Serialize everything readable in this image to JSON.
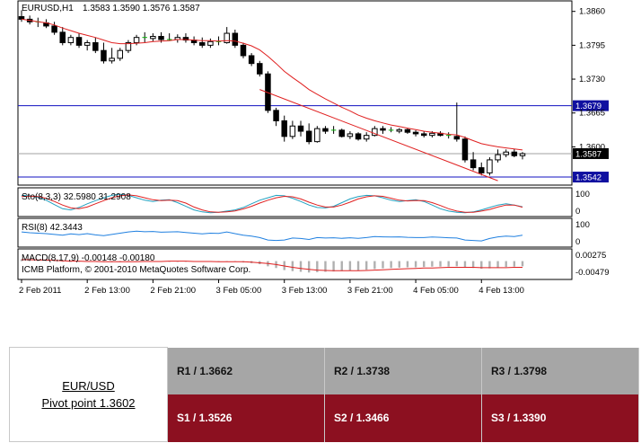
{
  "chart_data": {
    "type": "candlestick",
    "symbol_label": "EURUSD,H1",
    "ohlc_label": "1.3583 1.3590 1.3576 1.3587",
    "price_ticks": [
      "1.3860",
      "1.3795",
      "1.3730",
      "1.3665",
      "1.3600"
    ],
    "price_range": [
      1.353,
      1.3875
    ],
    "horizontal_lines": [
      {
        "label": "1.3679",
        "value": 1.3679
      },
      {
        "label": "1.3542",
        "value": 1.3542
      }
    ],
    "current_price": {
      "label": "1.3587",
      "value": 1.3587
    },
    "x_tick_labels": [
      "2 Feb 2011",
      "2 Feb 13:00",
      "2 Feb 21:00",
      "3 Feb 05:00",
      "3 Feb 13:00",
      "3 Feb 21:00",
      "4 Feb 05:00",
      "4 Feb 13:00"
    ],
    "candles": [
      [
        1.385,
        1.3862,
        1.384,
        1.3845
      ],
      [
        1.3845,
        1.3852,
        1.3835,
        1.384
      ],
      [
        1.384,
        1.3848,
        1.383,
        1.3838
      ],
      [
        1.3838,
        1.3845,
        1.3828,
        1.3832
      ],
      [
        1.3832,
        1.384,
        1.3815,
        1.382
      ],
      [
        1.382,
        1.383,
        1.3795,
        1.38
      ],
      [
        1.38,
        1.3815,
        1.3795,
        1.381
      ],
      [
        1.381,
        1.3818,
        1.379,
        1.3795
      ],
      [
        1.3795,
        1.3805,
        1.3785,
        1.38
      ],
      [
        1.38,
        1.381,
        1.378,
        1.3785
      ],
      [
        1.3785,
        1.38,
        1.376,
        1.3765
      ],
      [
        1.3765,
        1.379,
        1.376,
        1.377
      ],
      [
        1.377,
        1.379,
        1.3765,
        1.3785
      ],
      [
        1.3785,
        1.3805,
        1.378,
        1.38
      ],
      [
        1.38,
        1.3815,
        1.3795,
        1.381
      ],
      [
        1.381,
        1.382,
        1.38,
        1.3808
      ],
      [
        1.3808,
        1.3818,
        1.3802,
        1.3812
      ],
      [
        1.3812,
        1.382,
        1.38,
        1.3806
      ],
      [
        1.3806,
        1.3818,
        1.3804,
        1.3806
      ],
      [
        1.3806,
        1.3816,
        1.38,
        1.381
      ],
      [
        1.381,
        1.3818,
        1.38,
        1.3805
      ],
      [
        1.3805,
        1.3812,
        1.3795,
        1.38
      ],
      [
        1.38,
        1.381,
        1.379,
        1.3795
      ],
      [
        1.3795,
        1.3808,
        1.379,
        1.3802
      ],
      [
        1.3802,
        1.3812,
        1.3795,
        1.38
      ],
      [
        1.38,
        1.383,
        1.3798,
        1.3818
      ],
      [
        1.3818,
        1.3825,
        1.379,
        1.3795
      ],
      [
        1.3795,
        1.38,
        1.377,
        1.3775
      ],
      [
        1.3775,
        1.378,
        1.3755,
        1.376
      ],
      [
        1.376,
        1.3765,
        1.3735,
        1.374
      ],
      [
        1.374,
        1.3745,
        1.3665,
        1.367
      ],
      [
        1.367,
        1.3675,
        1.364,
        1.365
      ],
      [
        1.365,
        1.366,
        1.361,
        1.362
      ],
      [
        1.362,
        1.365,
        1.3615,
        1.364
      ],
      [
        1.364,
        1.365,
        1.362,
        1.363
      ],
      [
        1.363,
        1.3645,
        1.3605,
        1.361
      ],
      [
        1.361,
        1.364,
        1.3608,
        1.3635
      ],
      [
        1.3635,
        1.364,
        1.3625,
        1.363
      ],
      [
        1.363,
        1.364,
        1.3625,
        1.3632
      ],
      [
        1.3632,
        1.3635,
        1.3618,
        1.362
      ],
      [
        1.362,
        1.363,
        1.3615,
        1.3625
      ],
      [
        1.3625,
        1.3628,
        1.3612,
        1.3615
      ],
      [
        1.3615,
        1.3628,
        1.361,
        1.3622
      ],
      [
        1.3622,
        1.364,
        1.362,
        1.3635
      ],
      [
        1.3635,
        1.364,
        1.3625,
        1.3632
      ],
      [
        1.3632,
        1.3638,
        1.3628,
        1.363
      ],
      [
        1.363,
        1.3636,
        1.3626,
        1.3633
      ],
      [
        1.3633,
        1.3636,
        1.3625,
        1.3628
      ],
      [
        1.3628,
        1.3632,
        1.362,
        1.3625
      ],
      [
        1.3625,
        1.363,
        1.3618,
        1.3622
      ],
      [
        1.3622,
        1.363,
        1.3618,
        1.3626
      ],
      [
        1.3626,
        1.363,
        1.362,
        1.3622
      ],
      [
        1.3622,
        1.3628,
        1.3616,
        1.362
      ],
      [
        1.362,
        1.3685,
        1.361,
        1.3615
      ],
      [
        1.3615,
        1.362,
        1.357,
        1.3575
      ],
      [
        1.3575,
        1.359,
        1.3555,
        1.356
      ],
      [
        1.356,
        1.357,
        1.3545,
        1.355
      ],
      [
        1.355,
        1.358,
        1.3545,
        1.3575
      ],
      [
        1.3575,
        1.3595,
        1.357,
        1.3585
      ],
      [
        1.3585,
        1.3595,
        1.358,
        1.359
      ],
      [
        1.359,
        1.3596,
        1.358,
        1.3583
      ],
      [
        1.3583,
        1.359,
        1.3576,
        1.3587
      ]
    ],
    "moving_average": [
      1.3845,
      1.3843,
      1.384,
      1.3838,
      1.3834,
      1.3828,
      1.3823,
      1.3818,
      1.3814,
      1.381,
      1.3805,
      1.38,
      1.3798,
      1.3798,
      1.3799,
      1.38,
      1.3802,
      1.3803,
      1.3804,
      1.3806,
      1.3806,
      1.3805,
      1.3804,
      1.3804,
      1.3803,
      1.3804,
      1.3803,
      1.3799,
      1.3794,
      1.3786,
      1.3774,
      1.376,
      1.3745,
      1.3733,
      1.3722,
      1.371,
      1.3701,
      1.3692,
      1.3684,
      1.3676,
      1.3669,
      1.3661,
      1.3655,
      1.365,
      1.3646,
      1.3642,
      1.3639,
      1.3636,
      1.3633,
      1.363,
      1.3628,
      1.3626,
      1.3624,
      1.3623,
      1.3618,
      1.3612,
      1.3606,
      1.3603,
      1.36,
      1.3598,
      1.3596,
      1.3594
    ],
    "trend_line": {
      "from": [
        1.371,
        1.3605
      ],
      "to": [
        1.361,
        1.3535
      ]
    },
    "stochastic": {
      "label": "Sto(8,3,3) 32.5980 31.2908",
      "ticks": [
        "100",
        "0"
      ],
      "range": [
        0,
        100
      ],
      "main": [
        80,
        78,
        72,
        60,
        42,
        25,
        20,
        30,
        45,
        58,
        70,
        80,
        85,
        80,
        70,
        60,
        55,
        60,
        62,
        50,
        35,
        20,
        12,
        8,
        10,
        15,
        20,
        30,
        45,
        60,
        70,
        80,
        78,
        68,
        55,
        40,
        30,
        28,
        35,
        50,
        65,
        75,
        80,
        78,
        70,
        60,
        55,
        58,
        62,
        55,
        40,
        25,
        15,
        10,
        8,
        12,
        20,
        30,
        40,
        45,
        40,
        33
      ],
      "signal": [
        75,
        77,
        75,
        68,
        55,
        40,
        28,
        25,
        32,
        45,
        58,
        70,
        78,
        82,
        78,
        70,
        62,
        58,
        60,
        58,
        48,
        32,
        20,
        12,
        10,
        12,
        16,
        24,
        35,
        48,
        60,
        70,
        76,
        74,
        65,
        52,
        40,
        32,
        32,
        40,
        52,
        65,
        74,
        78,
        76,
        68,
        60,
        57,
        59,
        58,
        50,
        38,
        25,
        15,
        10,
        10,
        15,
        22,
        32,
        40,
        40,
        31
      ]
    },
    "rsi": {
      "label": "RSI(8) 42.3443",
      "ticks": [
        "100",
        "0"
      ],
      "range": [
        0,
        100
      ],
      "values": [
        55,
        52,
        50,
        48,
        45,
        42,
        47,
        44,
        48,
        43,
        40,
        45,
        50,
        55,
        58,
        56,
        57,
        54,
        55,
        56,
        53,
        50,
        47,
        50,
        49,
        55,
        48,
        42,
        38,
        32,
        22,
        20,
        22,
        30,
        28,
        24,
        32,
        30,
        31,
        29,
        31,
        29,
        32,
        36,
        35,
        34,
        35,
        33,
        32,
        32,
        34,
        33,
        31,
        30,
        22,
        20,
        18,
        28,
        35,
        38,
        36,
        42
      ]
    },
    "macd": {
      "label": "MACD(8,17,9) -0.00148 -0.00180",
      "ticks": [
        "0.00275",
        "-0.00479"
      ],
      "range": [
        -0.00479,
        0.00275
      ],
      "histogram": [
        0.0005,
        0.0004,
        0.0003,
        0.0002,
        0.0001,
        0.0,
        -0.0001,
        -0.0001,
        -0.0002,
        -0.0002,
        -0.0003,
        -0.0003,
        -0.0003,
        -0.0002,
        -0.0001,
        -0.0001,
        0.0,
        0.0,
        0.0,
        0.0,
        -0.0001,
        -0.0001,
        -0.0002,
        -0.0002,
        -0.0002,
        -0.0001,
        -0.0002,
        -0.0004,
        -0.0006,
        -0.0009,
        -0.0015,
        -0.002,
        -0.0026,
        -0.0029,
        -0.0031,
        -0.0033,
        -0.0032,
        -0.0031,
        -0.003,
        -0.0029,
        -0.0028,
        -0.0027,
        -0.0025,
        -0.0023,
        -0.0021,
        -0.002,
        -0.0019,
        -0.0018,
        -0.0018,
        -0.0017,
        -0.0016,
        -0.0016,
        -0.0016,
        -0.0015,
        -0.0017,
        -0.002,
        -0.0022,
        -0.0021,
        -0.0019,
        -0.0017,
        -0.0016,
        -0.0015
      ],
      "signal": [
        0.0004,
        0.0004,
        0.0003,
        0.0003,
        0.0002,
        0.0001,
        0.0,
        0.0,
        -0.0001,
        -0.0001,
        -0.0002,
        -0.0002,
        -0.0002,
        -0.0002,
        -0.0002,
        -0.0001,
        -0.0001,
        -0.0001,
        0.0,
        0.0,
        0.0,
        -0.0001,
        -0.0001,
        -0.0001,
        -0.0002,
        -0.0002,
        -0.0002,
        -0.0002,
        -0.0003,
        -0.0005,
        -0.0007,
        -0.001,
        -0.0014,
        -0.0018,
        -0.0021,
        -0.0024,
        -0.0026,
        -0.0027,
        -0.0028,
        -0.0028,
        -0.0028,
        -0.0028,
        -0.0027,
        -0.0026,
        -0.0025,
        -0.0024,
        -0.0023,
        -0.0022,
        -0.0021,
        -0.002,
        -0.002,
        -0.0019,
        -0.0018,
        -0.0018,
        -0.0018,
        -0.0018,
        -0.0019,
        -0.0019,
        -0.0019,
        -0.0019,
        -0.0018,
        -0.0018
      ]
    },
    "copyright": "ICMB Platform, © 2001-2010 MetaQuotes Software Corp."
  },
  "pivot_table": {
    "pair": "EUR/USD",
    "pivot": "Pivot point 1.3602",
    "resistance": [
      "R1 / 1.3662",
      "R2 / 1.3738",
      "R3 / 1.3798"
    ],
    "support": [
      "S1 / 1.3526",
      "S2 / 1.3466",
      "S3 / 1.3390"
    ]
  },
  "colors": {
    "bullish_tick": "#00b000",
    "ma_line": "#e02020",
    "level_line": "#1010c0",
    "stoch_main": "#20a0c0",
    "stoch_signal": "#e02020",
    "rsi_line": "#2080e0",
    "macd_hist": "#b0b0b0",
    "macd_signal": "#e02020",
    "resistance_bg": "#a6a6a6",
    "support_bg": "#8c1020"
  }
}
